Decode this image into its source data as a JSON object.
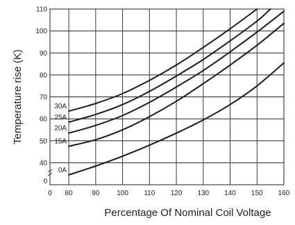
{
  "chart_data": {
    "type": "line",
    "xlabel": "Percentage Of Nominal Coil Voltage",
    "ylabel": "Temperature rise (K)",
    "xlim": [
      73,
      160
    ],
    "ylim": [
      30,
      110
    ],
    "x_ticks": [
      80,
      90,
      100,
      110,
      120,
      130,
      140,
      150,
      160
    ],
    "y_ticks": [
      40,
      50,
      60,
      70,
      80,
      90,
      100,
      110
    ],
    "origin_x_label": "0",
    "origin_y_label": "0",
    "grid": true,
    "series": [
      {
        "name": "0A",
        "x": [
          80,
          90,
          100,
          110,
          120,
          130,
          140,
          150,
          160
        ],
        "y": [
          34.5,
          38.5,
          43,
          48,
          53.5,
          59.5,
          66.5,
          75,
          85.5
        ]
      },
      {
        "name": "15A",
        "x": [
          80,
          90,
          100,
          110,
          120,
          130,
          140,
          150,
          160
        ],
        "y": [
          47.5,
          50.5,
          55,
          61,
          68,
          76,
          84.5,
          93.5,
          103.5
        ]
      },
      {
        "name": "20A",
        "x": [
          80,
          90,
          100,
          110,
          120,
          130,
          140,
          150,
          160
        ],
        "y": [
          53.5,
          57,
          61.5,
          67.5,
          74.5,
          82,
          90.5,
          99.5,
          109
        ]
      },
      {
        "name": "25A",
        "x": [
          80,
          90,
          100,
          110,
          120,
          130,
          140,
          150,
          155
        ],
        "y": [
          58.5,
          62,
          66.5,
          72.5,
          79.5,
          87,
          95.5,
          104.5,
          110
        ]
      },
      {
        "name": "30A",
        "x": [
          80,
          90,
          100,
          110,
          120,
          130,
          140,
          150
        ],
        "y": [
          63.5,
          67,
          71.5,
          77.5,
          84.5,
          92.5,
          101,
          110
        ]
      }
    ]
  }
}
